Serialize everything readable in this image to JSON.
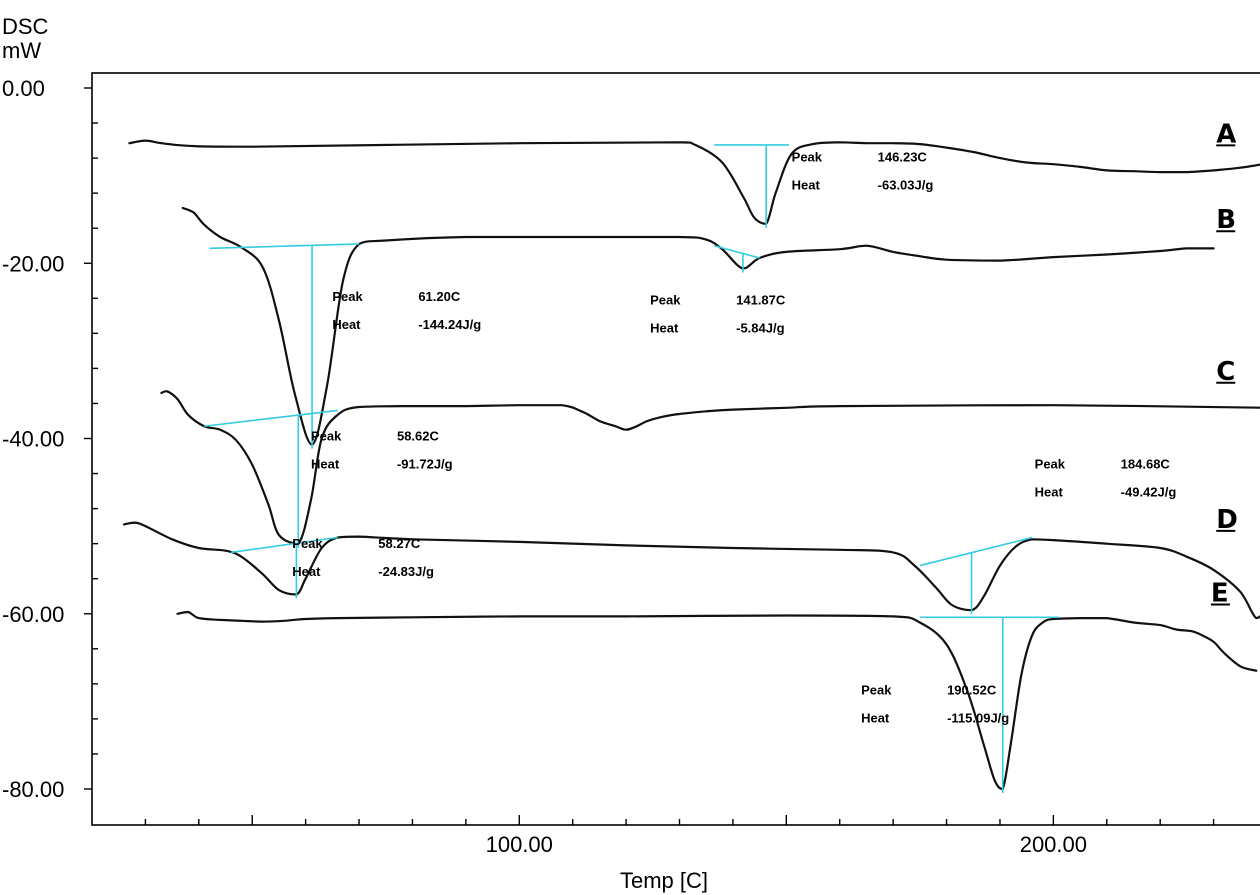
{
  "chart_data": {
    "type": "line",
    "title": "",
    "ylabel": "DSC",
    "yunit": "mW",
    "xlabel": "Temp [C]",
    "xlim": [
      20,
      240
    ],
    "ylim": [
      -83,
      0
    ],
    "y_major_ticks": [
      0,
      -20,
      -40,
      -60,
      -80
    ],
    "y_tick_labels": [
      "0.00",
      "-20.00",
      "-40.00",
      "-60.00",
      "-80.00"
    ],
    "x_major_ticks": [
      100,
      200
    ],
    "x_tick_labels": [
      "100.00",
      "200.00"
    ],
    "grid": false,
    "series": [
      {
        "name": "A",
        "x": [
          27,
          30,
          33,
          38,
          50,
          100,
          130,
          133,
          138,
          142,
          144,
          146.23,
          148,
          151,
          155,
          160,
          165,
          170,
          175,
          180,
          185,
          190,
          195,
          200,
          205,
          210,
          215,
          220,
          225,
          230,
          235,
          240
        ],
        "y": [
          -6.3,
          -6.0,
          -6.3,
          -6.6,
          -6.7,
          -6.3,
          -6.2,
          -6.5,
          -8.5,
          -12.5,
          -14.8,
          -15.5,
          -12.0,
          -7.5,
          -6.4,
          -6.2,
          -6.3,
          -6.3,
          -6.4,
          -6.8,
          -7.3,
          -8.0,
          -8.5,
          -8.7,
          -9.0,
          -9.4,
          -9.5,
          -9.6,
          -9.6,
          -9.4,
          -9.1,
          -8.6
        ],
        "peaks": [
          {
            "peak": "146.23C",
            "heat": "-63.03J/g"
          }
        ]
      },
      {
        "name": "B",
        "x": [
          37,
          39,
          41,
          44,
          48,
          52,
          55,
          58,
          61.2,
          64,
          67,
          70,
          75,
          90,
          110,
          130,
          135,
          138,
          141.87,
          145,
          150,
          160,
          165,
          170,
          175,
          180,
          190,
          200,
          210,
          220,
          225,
          230
        ],
        "y": [
          -13.7,
          -14.2,
          -15.6,
          -17.0,
          -18.2,
          -20.5,
          -26.5,
          -35.0,
          -40.7,
          -34.0,
          -22.0,
          -17.8,
          -17.4,
          -17.0,
          -17.0,
          -17.0,
          -17.3,
          -18.4,
          -20.6,
          -19.4,
          -18.7,
          -18.4,
          -18.0,
          -18.7,
          -19.2,
          -19.6,
          -19.7,
          -19.3,
          -19.0,
          -18.6,
          -18.3,
          -18.3
        ],
        "peaks": [
          {
            "peak": "61.20C",
            "heat": "-144.24J/g"
          },
          {
            "peak": "141.87C",
            "heat": "-5.84J/g"
          }
        ]
      },
      {
        "name": "C",
        "x": [
          33,
          34,
          36,
          38,
          41,
          44,
          47,
          50,
          53,
          55,
          58.62,
          61,
          63,
          66,
          70,
          80,
          90,
          100,
          108,
          112,
          115,
          118,
          120,
          122,
          124,
          127,
          130,
          135,
          140,
          150,
          160,
          200,
          240
        ],
        "y": [
          -34.8,
          -34.6,
          -35.5,
          -37.3,
          -38.6,
          -39.0,
          -40.2,
          -43.0,
          -47.5,
          -51.0,
          -52.0,
          -47.0,
          -40.0,
          -37.3,
          -36.4,
          -36.3,
          -36.3,
          -36.2,
          -36.2,
          -37.0,
          -38.0,
          -38.6,
          -39.0,
          -38.6,
          -38.0,
          -37.5,
          -37.2,
          -36.9,
          -36.7,
          -36.5,
          -36.3,
          -36.2,
          -36.5
        ],
        "peaks": [
          {
            "peak": "58.62C",
            "heat": "-91.72J/g"
          }
        ]
      },
      {
        "name": "D",
        "x": [
          26,
          28,
          30,
          35,
          40,
          45,
          48,
          52,
          55,
          58.27,
          60,
          63,
          66,
          70,
          80,
          100,
          120,
          140,
          160,
          170,
          174,
          178,
          181,
          184.68,
          187,
          190,
          193,
          196,
          200,
          210,
          220,
          225,
          230,
          235,
          238,
          240
        ],
        "y": [
          -49.8,
          -49.6,
          -50.0,
          -51.5,
          -52.5,
          -52.8,
          -53.5,
          -55.5,
          -57.3,
          -57.8,
          -56.0,
          -52.5,
          -51.3,
          -51.2,
          -51.5,
          -51.8,
          -52.2,
          -52.5,
          -52.7,
          -53.0,
          -54.5,
          -57.0,
          -59.0,
          -59.6,
          -58.0,
          -54.5,
          -52.3,
          -51.5,
          -51.6,
          -52.0,
          -52.5,
          -53.5,
          -55.0,
          -57.5,
          -60.5,
          -59.5
        ],
        "peaks": [
          {
            "peak": "58.27C",
            "heat": "-24.83J/g"
          },
          {
            "peak": "184.68C",
            "heat": "-49.42J/g"
          }
        ]
      },
      {
        "name": "E",
        "x": [
          36,
          38,
          40,
          44,
          48,
          52,
          56,
          60,
          66,
          80,
          100,
          120,
          150,
          170,
          175,
          180,
          184,
          187,
          189,
          190.52,
          192,
          194,
          196,
          198,
          200,
          205,
          210,
          215,
          220,
          223,
          226,
          228,
          230,
          232,
          235,
          238
        ],
        "y": [
          -60.0,
          -59.8,
          -60.5,
          -60.7,
          -60.8,
          -60.9,
          -60.8,
          -60.6,
          -60.5,
          -60.4,
          -60.3,
          -60.3,
          -60.2,
          -60.3,
          -61.0,
          -63.5,
          -69.0,
          -75.0,
          -79.0,
          -80.0,
          -75.0,
          -67.0,
          -62.5,
          -61.0,
          -60.6,
          -60.5,
          -60.5,
          -61.0,
          -61.3,
          -61.8,
          -62.0,
          -62.5,
          -63.2,
          -64.5,
          -66.0,
          -66.5
        ],
        "peaks": [
          {
            "peak": "190.52C",
            "heat": "-115.09J/g"
          }
        ]
      }
    ],
    "baselines": [
      {
        "series": "A",
        "x1": 136.5,
        "y1": -6.5,
        "x2": 150.5,
        "y2": -6.5,
        "mx": 146.23,
        "my": -15.5
      },
      {
        "series": "B",
        "x1": 42,
        "y1": -18.3,
        "x2": 70,
        "y2": -17.8,
        "mx": 61.2,
        "my": -40.7
      },
      {
        "series": "B",
        "x1": 136.5,
        "y1": -18.0,
        "x2": 145,
        "y2": -19.4,
        "mx": 141.87,
        "my": -20.6
      },
      {
        "series": "C",
        "x1": 41,
        "y1": -38.6,
        "x2": 66,
        "y2": -36.8,
        "mx": 58.62,
        "my": -52.0
      },
      {
        "series": "D",
        "x1": 46,
        "y1": -53.0,
        "x2": 66,
        "y2": -51.3,
        "mx": 58.27,
        "my": -57.8
      },
      {
        "series": "D",
        "x1": 175,
        "y1": -54.5,
        "x2": 196,
        "y2": -51.3,
        "mx": 184.68,
        "my": -59.6
      },
      {
        "series": "E",
        "x1": 175,
        "y1": -60.4,
        "x2": 201,
        "y2": -60.4,
        "mx": 190.52,
        "my": -80.0
      }
    ],
    "annotations": [
      {
        "peak_label": "Peak",
        "peak_value": "146.23C",
        "heat_label": "Heat",
        "heat_value": "-63.03J/g",
        "x": 151,
        "y": -8.4
      },
      {
        "peak_label": "Peak",
        "peak_value": "61.20C",
        "heat_label": "Heat",
        "heat_value": "-144.24J/g",
        "x": 65,
        "y": -24.3
      },
      {
        "peak_label": "Peak",
        "peak_value": "141.87C",
        "heat_label": "Heat",
        "heat_value": "-5.84J/g",
        "x": 124.5,
        "y": -24.7
      },
      {
        "peak_label": "Peak",
        "peak_value": "58.62C",
        "heat_label": "Heat",
        "heat_value": "-91.72J/g",
        "x": 61,
        "y": -40.2
      },
      {
        "peak_label": "Peak",
        "peak_value": "184.68C",
        "heat_label": "Heat",
        "heat_value": "-49.42J/g",
        "x": 196.5,
        "y": -43.4
      },
      {
        "peak_label": "Peak",
        "peak_value": "58.27C",
        "heat_label": "Heat",
        "heat_value": "-24.83J/g",
        "x": 57.5,
        "y": -52.5
      },
      {
        "peak_label": "Peak",
        "peak_value": "190.52C",
        "heat_label": "Heat",
        "heat_value": "-115.09J/g",
        "x": 164,
        "y": -69.2
      }
    ],
    "series_label_positions": [
      {
        "name": "A",
        "x": 230.5,
        "y": -6.2
      },
      {
        "name": "B",
        "x": 230.5,
        "y": -16.0
      },
      {
        "name": "C",
        "x": 230.5,
        "y": -33.3
      },
      {
        "name": "D",
        "x": 230.5,
        "y": -50.2
      },
      {
        "name": "E",
        "x": 229.5,
        "y": -58.6
      }
    ],
    "colors": {
      "curve": "#111111",
      "baseline": "#33cce0",
      "axis": "#000000"
    }
  }
}
